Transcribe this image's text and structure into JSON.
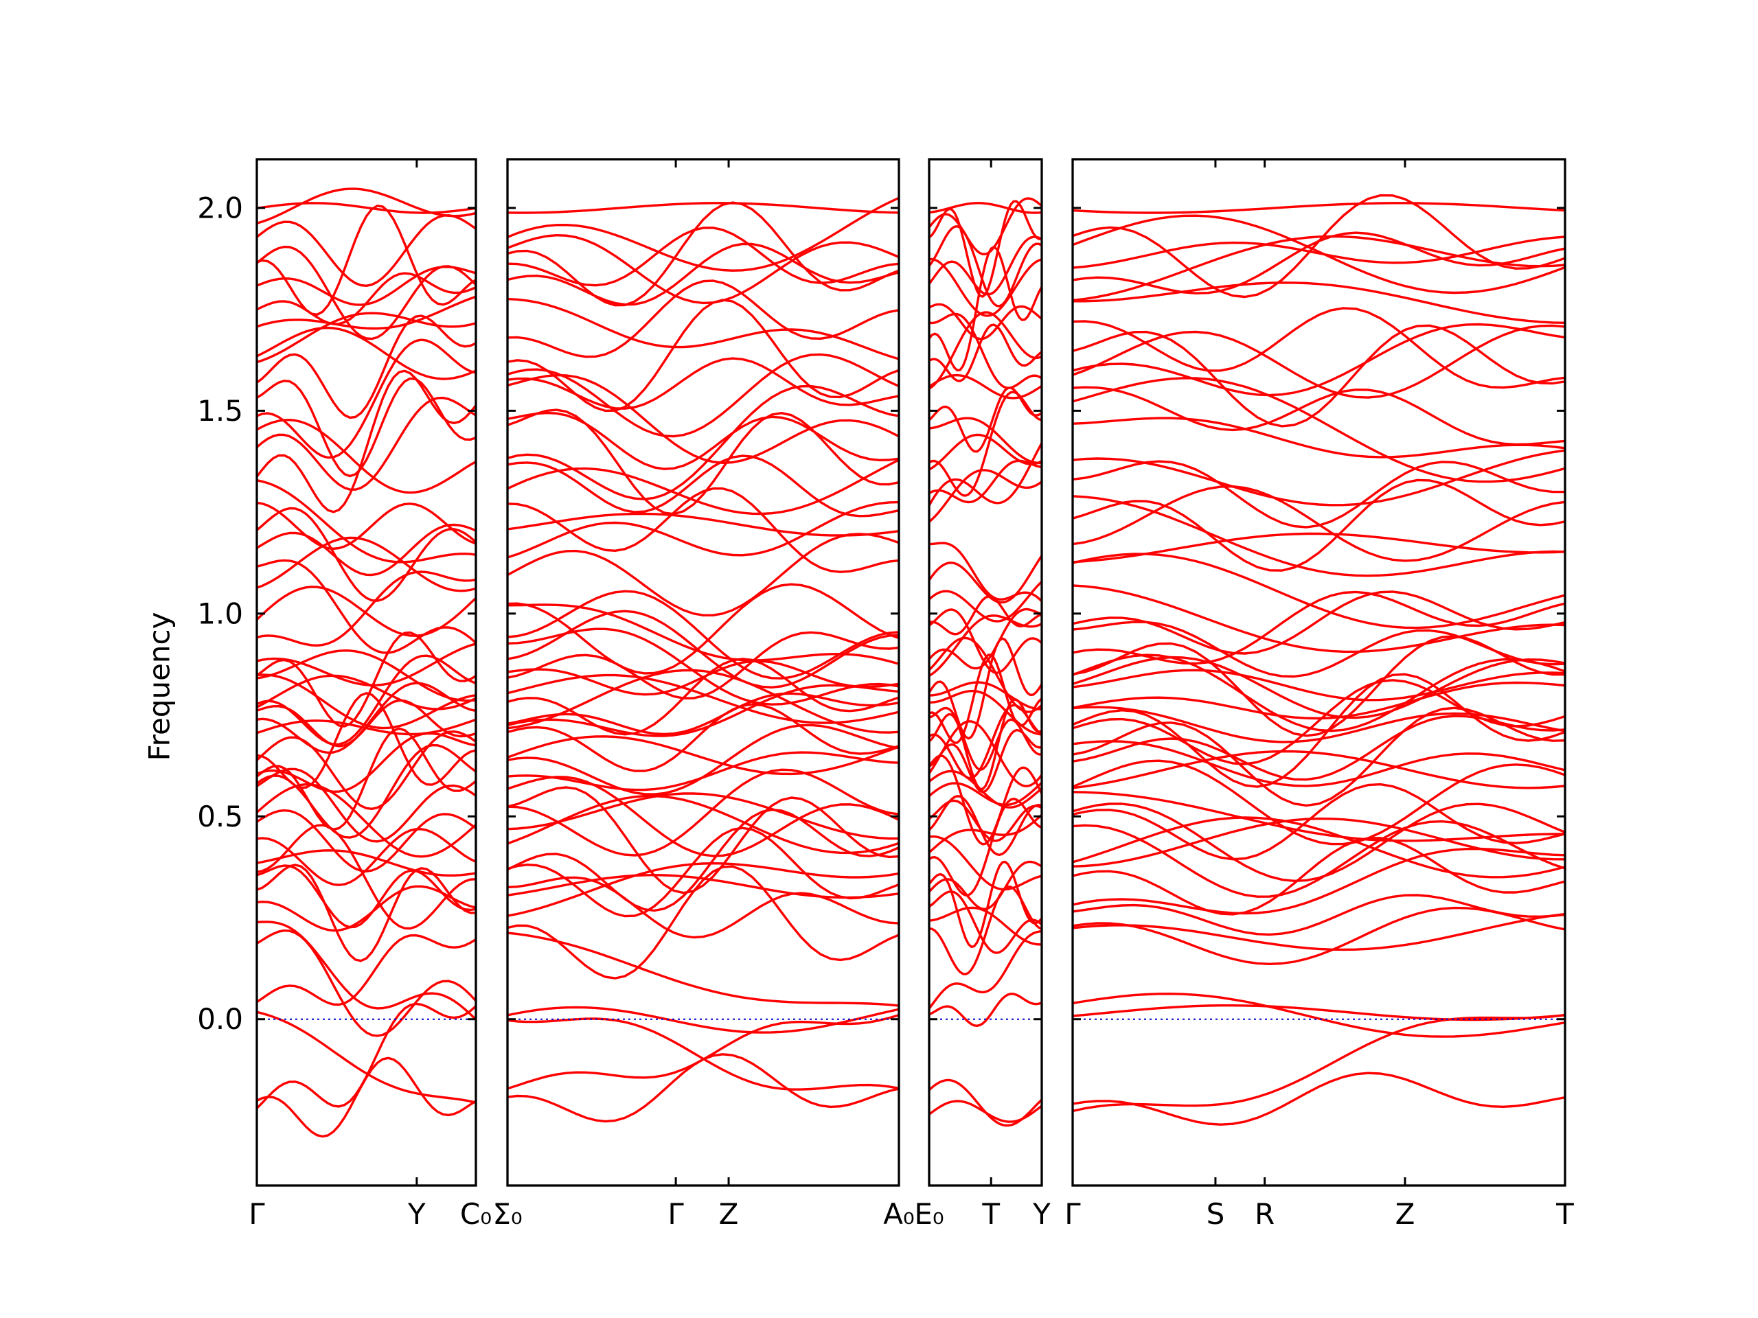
{
  "chart_data": {
    "type": "line",
    "ylabel": "Frequency",
    "ylim": [
      -0.41,
      2.12
    ],
    "yticks": [
      "0.0",
      "0.5",
      "1.0",
      "1.5",
      "2.0"
    ],
    "line_color": "#ff0000",
    "zero_line_color": "#0000cc",
    "panels": [
      {
        "labels": [
          "Γ",
          "Y",
          "C₀"
        ],
        "label_positions": [
          0,
          0.73,
          1
        ]
      },
      {
        "labels": [
          "Σ₀",
          "Γ",
          "Z",
          "A₀"
        ],
        "label_positions": [
          0,
          0.43,
          0.565,
          1
        ]
      },
      {
        "labels": [
          "E₀",
          "T",
          "Y"
        ],
        "label_positions": [
          0,
          0.55,
          1
        ]
      },
      {
        "labels": [
          "Γ",
          "S",
          "R",
          "Z",
          "T"
        ],
        "label_positions": [
          0,
          0.29,
          0.39,
          0.675,
          1
        ]
      }
    ],
    "band_anchor_values": [
      -0.21,
      -0.2,
      0.0,
      0.02,
      0.2,
      0.22,
      0.26,
      0.3,
      0.35,
      0.37,
      0.4,
      0.45,
      0.48,
      0.5,
      0.55,
      0.58,
      0.6,
      0.63,
      0.65,
      0.68,
      0.7,
      0.73,
      0.75,
      0.78,
      0.8,
      0.83,
      0.85,
      0.87,
      0.9,
      0.95,
      1.0,
      1.05,
      1.1,
      1.15,
      1.2,
      1.25,
      1.3,
      1.35,
      1.4,
      1.45,
      1.5,
      1.55,
      1.58,
      1.6,
      1.65,
      1.7,
      1.75,
      1.8,
      1.85,
      1.88,
      1.9,
      1.95,
      2.0
    ]
  }
}
